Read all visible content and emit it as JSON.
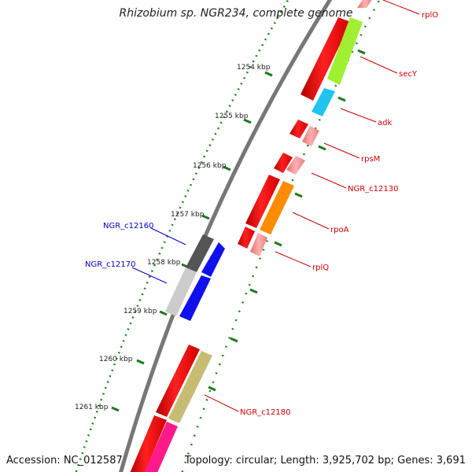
{
  "title": "Rhizobium sp. NGR234, complete genome",
  "footer": {
    "accession": "Accession: NC_012587",
    "stats": "Topology: circular; Length: 3,925,702 bp; Genes: 3,691"
  },
  "colors": {
    "backbone": "#7a7a7a",
    "tick_green": "#1a7a1a",
    "forward_label": "#cc0000",
    "reverse_label": "#0000cc"
  },
  "ticks": [
    {
      "label": "1254 kbp"
    },
    {
      "label": "1255 kbp"
    },
    {
      "label": "1256 kbp"
    },
    {
      "label": "1257 kbp"
    },
    {
      "label": "1258 kbp"
    },
    {
      "label": "1259 kbp"
    },
    {
      "label": "1260 kbp"
    },
    {
      "label": "1261 kbp"
    }
  ],
  "gene_labels": [
    {
      "name": "rplO",
      "color": "#cc0000"
    },
    {
      "name": "secY",
      "color": "#cc0000"
    },
    {
      "name": "adk",
      "color": "#cc0000"
    },
    {
      "name": "rpsM",
      "color": "#cc0000"
    },
    {
      "name": "NGR_c12130",
      "color": "#cc0000"
    },
    {
      "name": "rpoA",
      "color": "#cc0000"
    },
    {
      "name": "rplQ",
      "color": "#cc0000"
    },
    {
      "name": "NGR_c12160",
      "color": "#0000cc"
    },
    {
      "name": "NGR_c12170",
      "color": "#0000cc"
    },
    {
      "name": "NGR_c12180",
      "color": "#cc0000"
    }
  ]
}
